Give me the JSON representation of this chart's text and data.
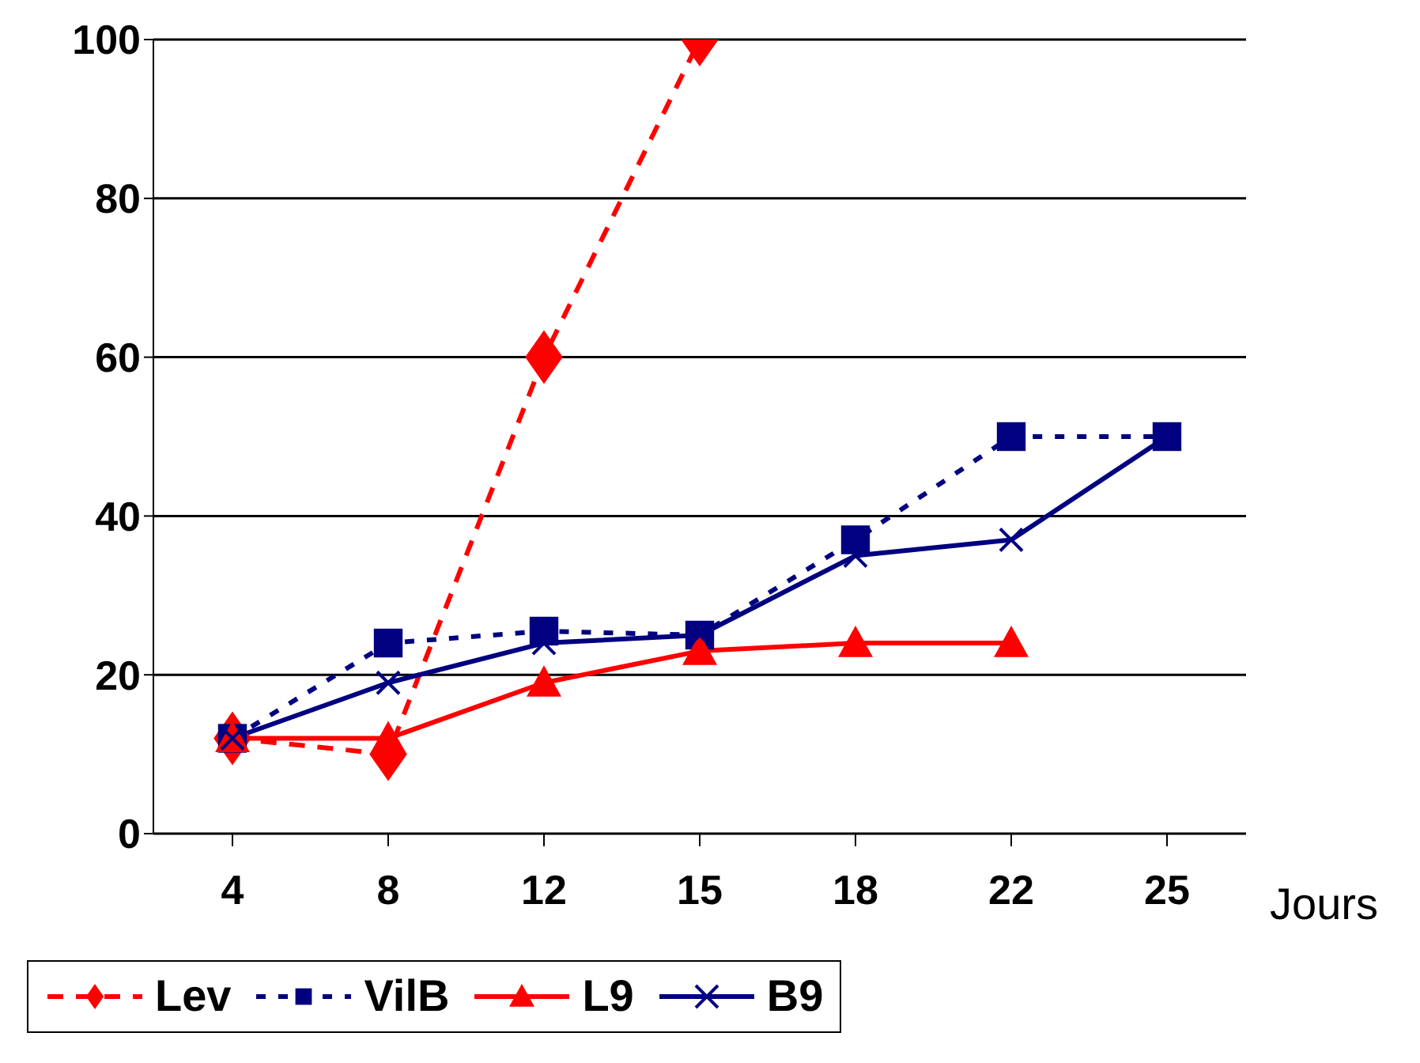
{
  "chart_data": {
    "type": "line",
    "xlabel": "Jours",
    "categories": [
      "4",
      "8",
      "12",
      "15",
      "18",
      "22",
      "25"
    ],
    "series": [
      {
        "name": "Lev",
        "color": "#ff0000",
        "marker": "diamond",
        "line_style": "dashed",
        "values": [
          12,
          10,
          60,
          100,
          null,
          null,
          null
        ]
      },
      {
        "name": "VilB",
        "color": "#000080",
        "marker": "square",
        "line_style": "dotted",
        "values": [
          12,
          24,
          25.5,
          25,
          37,
          50,
          50
        ]
      },
      {
        "name": "L9",
        "color": "#ff0000",
        "marker": "triangle",
        "line_style": "solid",
        "values": [
          12,
          12,
          19,
          23,
          24,
          24,
          null
        ]
      },
      {
        "name": "B9",
        "color": "#000080",
        "marker": "cross",
        "line_style": "solid",
        "values": [
          12,
          19,
          24,
          25,
          35,
          37,
          50
        ]
      }
    ],
    "ylim": [
      0,
      100
    ],
    "yticks": [
      0,
      20,
      40,
      60,
      80,
      100
    ],
    "grid": "y",
    "legend": "bottom"
  }
}
